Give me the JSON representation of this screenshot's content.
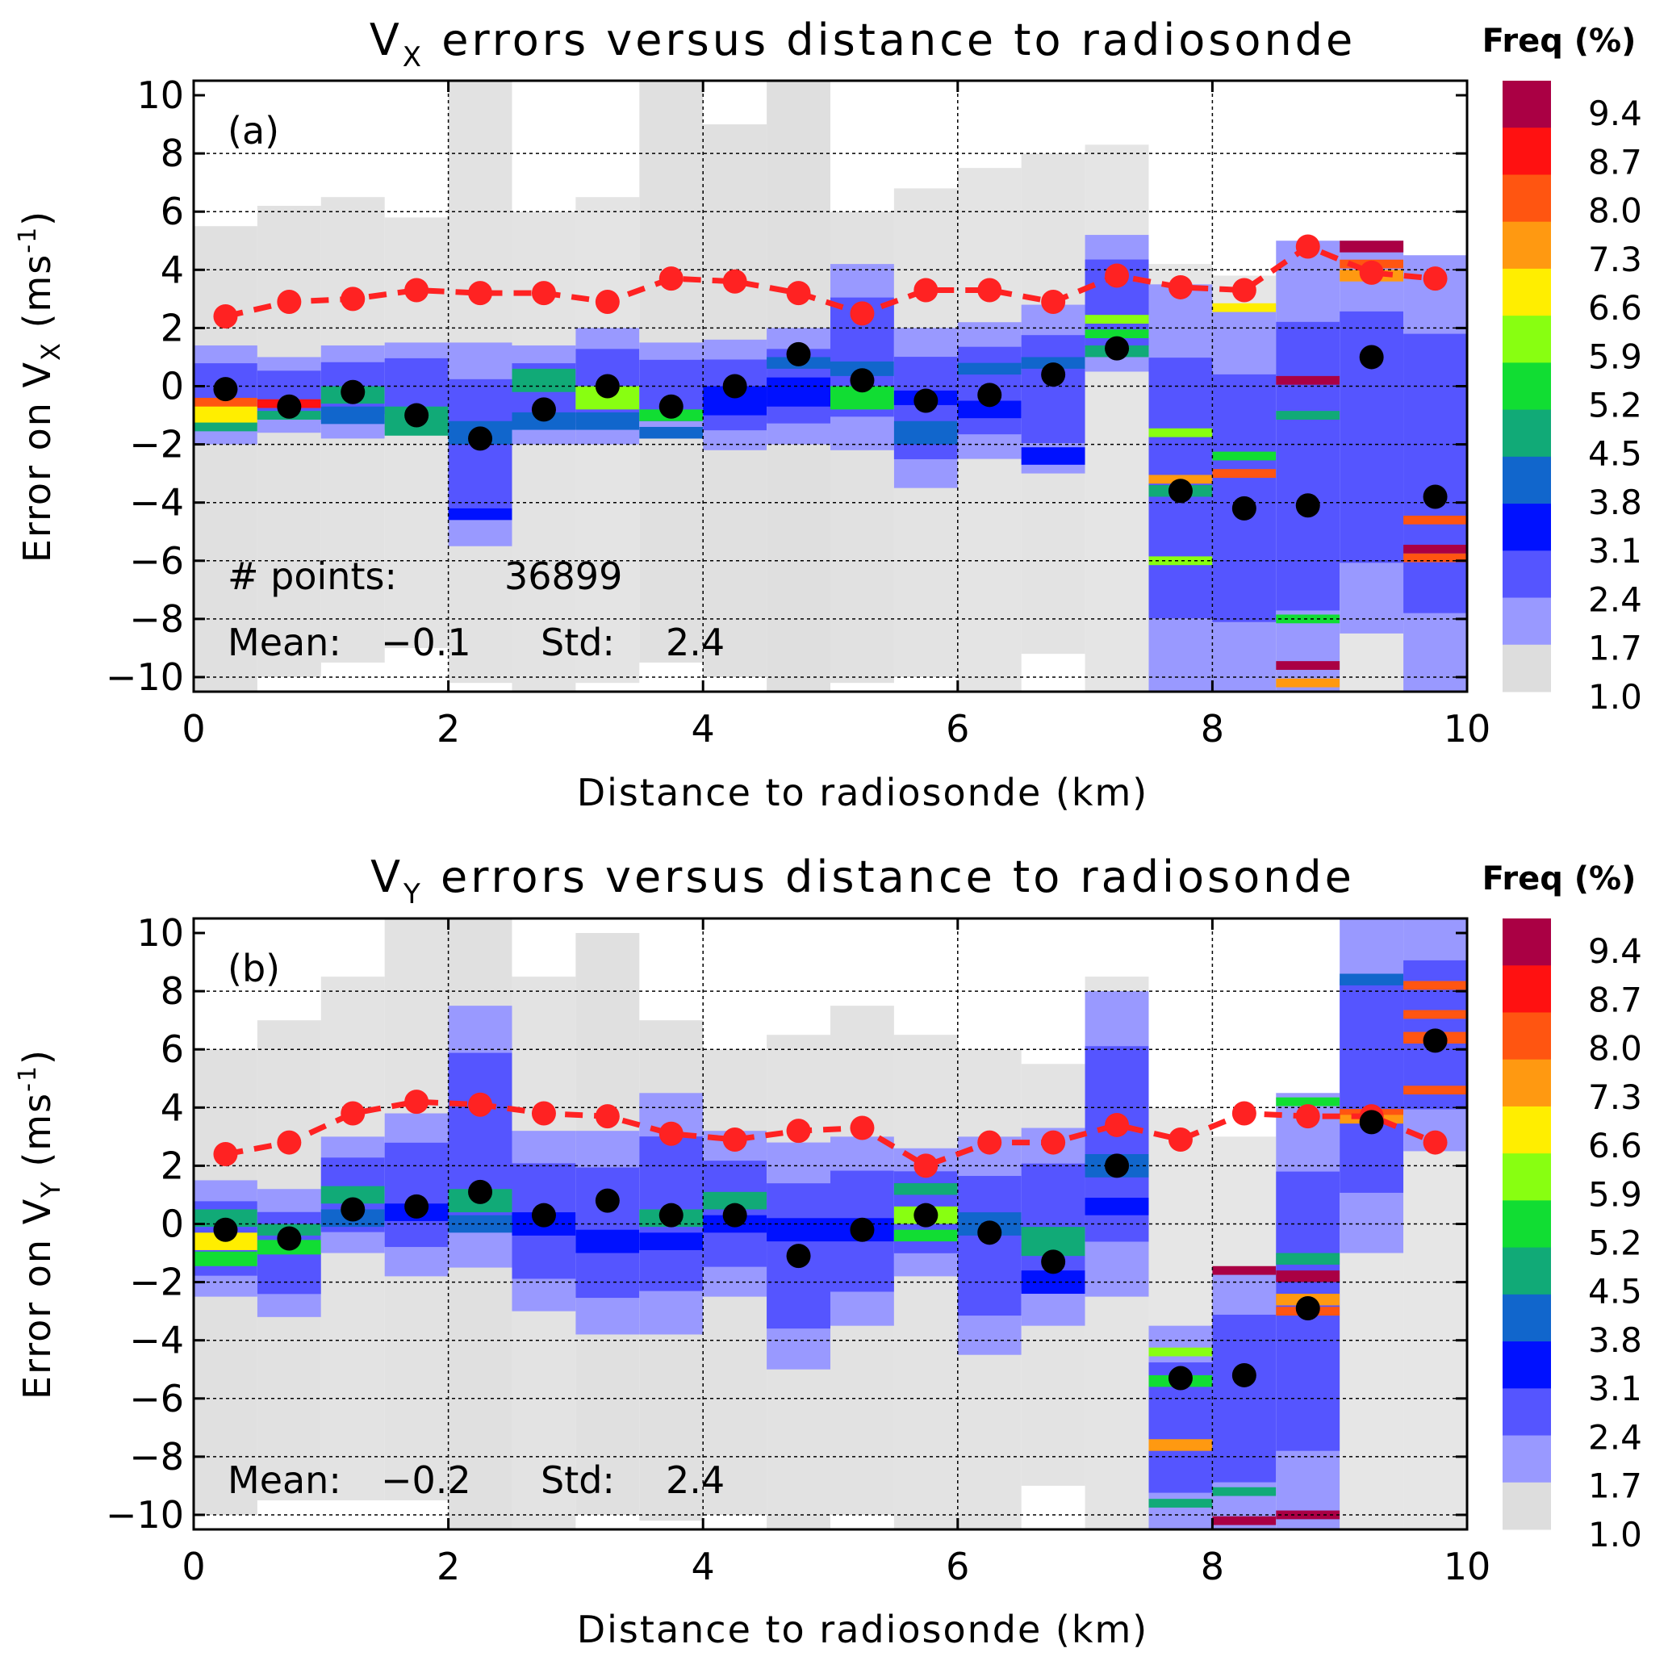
{
  "chart_data": [
    {
      "type": "heatmap",
      "panel": "(a)",
      "title_main": "V",
      "title_sub": "X",
      "title_rest": " errors versus distance to radiosonde",
      "ylabel_main": "Error on V",
      "ylabel_sub": "X",
      "ylabel_unit": " (ms",
      "ylabel_exp": "-1",
      "ylabel_close": ")",
      "xlabel": "Distance to radiosonde (km)",
      "xlim": [
        0,
        10
      ],
      "ylim": [
        -10.5,
        10.5
      ],
      "xticks": [
        "0",
        "2",
        "4",
        "6",
        "8",
        "10"
      ],
      "yticks": [
        "10",
        "8",
        "6",
        "4",
        "2",
        "0",
        "−2",
        "−4",
        "−6",
        "−8",
        "−10"
      ],
      "points_label": "# points:",
      "points_value": "36899",
      "mean_label": "Mean:",
      "mean_value": "−0.1",
      "std_label": "Std:",
      "std_value": "2.4",
      "bin_centers_km": [
        0.25,
        0.75,
        1.25,
        1.75,
        2.25,
        2.75,
        3.25,
        3.75,
        4.25,
        4.75,
        5.25,
        5.75,
        6.25,
        6.75,
        7.25,
        7.75,
        8.25,
        8.75,
        9.25,
        9.75
      ],
      "mean_error": [
        -0.1,
        -0.7,
        -0.2,
        -1.0,
        -1.8,
        -0.8,
        0.0,
        -0.7,
        0.0,
        1.1,
        0.2,
        -0.5,
        -0.3,
        0.4,
        1.3,
        -3.6,
        -4.2,
        -4.1,
        1.0,
        -3.8
      ],
      "std_error": [
        2.4,
        2.9,
        3.0,
        3.3,
        3.2,
        3.2,
        2.9,
        3.7,
        3.6,
        3.2,
        2.5,
        3.3,
        3.3,
        2.9,
        3.8,
        3.4,
        3.3,
        4.8,
        3.9,
        3.7
      ],
      "density_bins": [
        [
          -10.5,
          5.5,
          0.6,
          -2,
          1.4,
          [
            [
              -0.6,
              0.4,
              8.0
            ],
            [
              -1.0,
              0.6,
              6.6
            ],
            [
              -1.4,
              0.3,
              4.5
            ]
          ]
        ],
        [
          -10.0,
          6.2,
          0.5,
          -1.6,
          1.0,
          [
            [
              -0.6,
              0.3,
              8.7
            ],
            [
              -1.0,
              0.3,
              4.5
            ]
          ]
        ],
        [
          -9.5,
          6.5,
          0.4,
          -1.8,
          1.4,
          [
            [
              -0.3,
              0.6,
              4.5
            ],
            [
              -1.0,
              0.6,
              3.8
            ]
          ]
        ],
        [
          -9.0,
          5.8,
          0.3,
          -1.5,
          1.5,
          [
            [
              -1.2,
              1.0,
              4.5
            ]
          ]
        ],
        [
          -10.2,
          10.5,
          0.4,
          -5.5,
          1.5,
          [
            [
              -1.6,
              0.8,
              3.8
            ],
            [
              -4.4,
              0.4,
              3.1
            ]
          ]
        ],
        [
          -10.5,
          6.0,
          0.3,
          -2,
          1.4,
          [
            [
              0.2,
              0.8,
              4.5
            ],
            [
              -1.2,
              0.6,
              3.8
            ]
          ]
        ],
        [
          -10.2,
          6.5,
          0.2,
          -2,
          2.0,
          [
            [
              -0.4,
              0.8,
              5.9
            ],
            [
              -1.2,
              0.6,
              3.8
            ]
          ]
        ],
        [
          -9.5,
          10.5,
          0.6,
          -1.8,
          1.5,
          [
            [
              -1.0,
              0.4,
              5.2
            ],
            [
              -1.6,
              0.4,
              3.8
            ]
          ]
        ],
        [
          -10.0,
          9.0,
          0.6,
          -2.2,
          1.6,
          [
            [
              -0.5,
              1.0,
              3.1
            ]
          ]
        ],
        [
          -10.5,
          10.5,
          0.8,
          -2.0,
          2.0,
          [
            [
              -0.2,
              1.0,
              3.1
            ],
            [
              0.8,
              0.4,
              3.8
            ]
          ]
        ],
        [
          -10.2,
          6.0,
          0.5,
          -2.2,
          4.2,
          [
            [
              -0.4,
              0.8,
              5.2
            ],
            [
              0.6,
              0.5,
              3.8
            ]
          ]
        ],
        [
          -10.0,
          6.8,
          0.3,
          -3.5,
          2.0,
          [
            [
              -1.6,
              0.8,
              3.8
            ],
            [
              -0.4,
              0.5,
              3.1
            ]
          ]
        ],
        [
          -10.5,
          7.5,
          0.2,
          -2.5,
          2.2,
          [
            [
              -0.8,
              0.6,
              3.1
            ],
            [
              0.6,
              0.4,
              3.8
            ]
          ]
        ],
        [
          -9.2,
          8.0,
          0.3,
          -3.0,
          2.8,
          [
            [
              -2.4,
              0.6,
              3.1
            ],
            [
              0.8,
              0.4,
              3.8
            ]
          ]
        ],
        [
          -10.5,
          8.3,
          0.1,
          0.5,
          5.2,
          [
            [
              1.8,
              0.3,
              5.2
            ],
            [
              1.2,
              0.4,
              4.5
            ],
            [
              2.3,
              0.3,
              5.9
            ]
          ]
        ],
        [
          -10.5,
          4.2,
          0.0,
          -10.5,
          3.5,
          [
            [
              -1.6,
              0.3,
              5.9
            ],
            [
              -3.2,
              0.3,
              7.3
            ],
            [
              -6.0,
              0.3,
              5.9
            ],
            [
              -3.6,
              0.4,
              4.5
            ]
          ]
        ],
        [
          -10.5,
          3.8,
          0.0,
          -10.5,
          2.8,
          [
            [
              2.7,
              0.3,
              6.6
            ],
            [
              -3.0,
              0.3,
              8.0
            ],
            [
              -2.4,
              0.3,
              5.2
            ]
          ]
        ],
        [
          -10.5,
          5.0,
          0.0,
          -10.5,
          5.0,
          [
            [
              0.2,
              0.3,
              9.4
            ],
            [
              -1.0,
              0.3,
              4.5
            ],
            [
              -8.0,
              0.3,
              5.2
            ],
            [
              -9.6,
              0.3,
              9.4
            ],
            [
              -10.2,
              0.3,
              7.3
            ]
          ]
        ],
        [
          -10.5,
          5.0,
          0.0,
          -8.5,
          5.0,
          [
            [
              4.8,
              0.4,
              9.4
            ],
            [
              4.2,
              0.3,
              8.0
            ],
            [
              3.8,
              0.4,
              7.3
            ]
          ]
        ],
        [
          -10.5,
          4.5,
          0.0,
          -10.5,
          4.5,
          [
            [
              -4.6,
              0.3,
              8.0
            ],
            [
              -5.6,
              0.3,
              9.4
            ],
            [
              -5.9,
              0.3,
              8.0
            ]
          ]
        ]
      ]
    },
    {
      "type": "heatmap",
      "panel": "(b)",
      "title_main": "V",
      "title_sub": "Y",
      "title_rest": " errors versus distance to radiosonde",
      "ylabel_main": "Error on V",
      "ylabel_sub": "Y",
      "ylabel_unit": " (ms",
      "ylabel_exp": "-1",
      "ylabel_close": ")",
      "xlabel": "Distance to radiosonde (km)",
      "xlim": [
        0,
        10
      ],
      "ylim": [
        -10.5,
        10.5
      ],
      "xticks": [
        "0",
        "2",
        "4",
        "6",
        "8",
        "10"
      ],
      "yticks": [
        "10",
        "8",
        "6",
        "4",
        "2",
        "0",
        "−2",
        "−4",
        "−6",
        "−8",
        "−10"
      ],
      "mean_label": "Mean:",
      "mean_value": "−0.2",
      "std_label": "Std:",
      "std_value": "2.4",
      "bin_centers_km": [
        0.25,
        0.75,
        1.25,
        1.75,
        2.25,
        2.75,
        3.25,
        3.75,
        4.25,
        4.75,
        5.25,
        5.75,
        6.25,
        6.75,
        7.25,
        7.75,
        8.25,
        8.75,
        9.25,
        9.75
      ],
      "mean_error": [
        -0.2,
        -0.5,
        0.5,
        0.6,
        1.1,
        0.3,
        0.8,
        0.3,
        0.3,
        -1.1,
        -0.2,
        0.3,
        -0.3,
        -1.3,
        2.0,
        -5.3,
        -5.2,
        -2.9,
        3.5,
        6.3
      ],
      "std_error": [
        2.4,
        2.8,
        3.8,
        4.2,
        4.1,
        3.8,
        3.7,
        3.1,
        2.9,
        3.2,
        3.3,
        2.0,
        2.8,
        2.8,
        3.4,
        2.9,
        3.8,
        3.7,
        3.7,
        2.8
      ],
      "density_bins": [
        [
          -10.0,
          6.0,
          0.6,
          -2.5,
          1.5,
          [
            [
              -0.6,
              0.6,
              6.6
            ],
            [
              -1.2,
              0.5,
              5.2
            ],
            [
              0.2,
              0.6,
              4.5
            ]
          ]
        ],
        [
          -9.5,
          7.0,
          0.5,
          -3.2,
          1.2,
          [
            [
              -0.8,
              0.5,
              5.2
            ],
            [
              -0.2,
              0.4,
              4.5
            ]
          ]
        ],
        [
          -9.5,
          8.5,
          0.3,
          -1.0,
          3.0,
          [
            [
              1.0,
              0.6,
              4.5
            ],
            [
              0.2,
              0.6,
              3.8
            ]
          ]
        ],
        [
          -9.5,
          10.5,
          0.4,
          -1.8,
          3.8,
          [
            [
              0.4,
              0.6,
              3.1
            ]
          ]
        ],
        [
          -10.5,
          10.5,
          0.6,
          -1.5,
          7.5,
          [
            [
              0.8,
              0.8,
              4.5
            ],
            [
              0.0,
              0.6,
              3.8
            ]
          ]
        ],
        [
          -10.5,
          8.5,
          0.3,
          -3.0,
          3.2,
          [
            [
              0.0,
              0.8,
              3.1
            ]
          ]
        ],
        [
          -10.0,
          10.0,
          0.6,
          -3.8,
          3.2,
          [
            [
              -0.6,
              0.8,
              3.1
            ]
          ]
        ],
        [
          -10.2,
          7.0,
          0.6,
          -3.8,
          4.5,
          [
            [
              0.2,
              0.6,
              4.5
            ],
            [
              -0.6,
              0.6,
              3.1
            ]
          ]
        ],
        [
          -10.0,
          6.0,
          0.5,
          -2.5,
          3.2,
          [
            [
              0.8,
              0.6,
              4.5
            ],
            [
              0.0,
              0.6,
              3.1
            ]
          ]
        ],
        [
          -10.5,
          6.5,
          0.4,
          -5.0,
          2.8,
          [
            [
              -0.2,
              0.8,
              3.1
            ]
          ]
        ],
        [
          -10.0,
          7.5,
          0.4,
          -3.5,
          3.0,
          [
            [
              -0.2,
              0.8,
              3.1
            ]
          ]
        ],
        [
          -10.5,
          6.5,
          0.3,
          -1.8,
          2.6,
          [
            [
              0.3,
              0.6,
              5.9
            ],
            [
              -0.4,
              0.4,
              5.2
            ],
            [
              1.2,
              0.4,
              4.5
            ]
          ]
        ],
        [
          -10.5,
          6.0,
          0.3,
          -4.5,
          3.0,
          [
            [
              0.0,
              0.8,
              3.8
            ]
          ]
        ],
        [
          -9.0,
          5.5,
          0.3,
          -3.5,
          3.3,
          [
            [
              -0.6,
              1.0,
              4.5
            ],
            [
              -2.0,
              0.8,
              3.1
            ]
          ]
        ],
        [
          -10.5,
          8.5,
          0.2,
          -2.5,
          8.0,
          [
            [
              2.0,
              0.8,
              3.8
            ],
            [
              0.6,
              0.6,
              3.1
            ]
          ]
        ],
        [
          -10.5,
          4.0,
          0.0,
          -10.5,
          -3.5,
          [
            [
              -4.4,
              0.3,
              5.9
            ],
            [
              -5.4,
              0.4,
              5.2
            ],
            [
              -7.6,
              0.4,
              7.3
            ],
            [
              -9.6,
              0.3,
              4.5
            ]
          ]
        ],
        [
          -10.5,
          3.0,
          0.0,
          -10.5,
          -1.5,
          [
            [
              -1.6,
              0.3,
              9.4
            ],
            [
              -10.2,
              0.3,
              9.4
            ],
            [
              -9.2,
              0.3,
              4.5
            ]
          ]
        ],
        [
          -10.5,
          4.5,
          0.0,
          -10.5,
          4.5,
          [
            [
              -1.8,
              0.4,
              9.4
            ],
            [
              -2.6,
              0.4,
              7.3
            ],
            [
              -3.0,
              0.3,
              8.0
            ],
            [
              -1.2,
              0.4,
              4.5
            ],
            [
              -10.0,
              0.3,
              9.4
            ],
            [
              4.2,
              0.3,
              5.2
            ]
          ]
        ],
        [
          -10.5,
          10.5,
          0.0,
          -1.0,
          10.5,
          [
            [
              3.8,
              0.3,
              8.0
            ],
            [
              3.6,
              0.3,
              7.3
            ],
            [
              8.4,
              0.4,
              3.8
            ]
          ]
        ],
        [
          -10.5,
          10.5,
          0.0,
          2.5,
          10.5,
          [
            [
              8.2,
              0.3,
              8.0
            ],
            [
              7.2,
              0.3,
              8.0
            ],
            [
              6.4,
              0.4,
              8.0
            ],
            [
              4.6,
              0.3,
              8.0
            ]
          ]
        ]
      ]
    }
  ],
  "colorbar": {
    "title": "Freq (%)",
    "labels": [
      "9.4",
      "8.7",
      "8.0",
      "7.3",
      "6.6",
      "5.9",
      "5.2",
      "4.5",
      "3.8",
      "3.1",
      "2.4",
      "1.7",
      "1.0"
    ],
    "colors": [
      "#aa0044",
      "#ff1111",
      "#ff5511",
      "#ff9911",
      "#ffee00",
      "#88ff11",
      "#11dd33",
      "#11aa77",
      "#1166cc",
      "#0011ff",
      "#5555ff",
      "#9999ff",
      "#dddddd"
    ]
  }
}
